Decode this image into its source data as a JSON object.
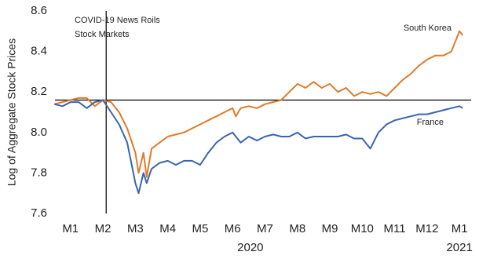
{
  "chart_data": {
    "type": "line",
    "y_label": "Log of Aggregate Stock Prices",
    "annotations": [
      "COVID-19 News Roils",
      "Stock Markets"
    ],
    "year_labels": [
      "2020",
      "2021"
    ],
    "x": [
      0.5,
      0.75,
      1,
      1.25,
      1.5,
      1.75,
      2,
      2.25,
      2.5,
      2.75,
      3,
      3.1,
      3.25,
      3.35,
      3.5,
      3.75,
      4,
      4.25,
      4.5,
      4.75,
      5,
      5.25,
      5.5,
      5.75,
      6,
      6.1,
      6.25,
      6.5,
      6.75,
      7,
      7.25,
      7.5,
      7.75,
      8,
      8.25,
      8.5,
      8.75,
      9,
      9.25,
      9.5,
      9.75,
      10,
      10.25,
      10.5,
      10.75,
      11,
      11.25,
      11.5,
      11.75,
      12,
      12.25,
      12.5,
      12.75,
      13,
      13.1
    ],
    "series": [
      {
        "name": "South Korea",
        "color": "#e07b2a",
        "values": [
          8.14,
          8.15,
          8.16,
          8.17,
          8.17,
          8.13,
          8.16,
          8.15,
          8.1,
          8.02,
          7.9,
          7.8,
          7.9,
          7.78,
          7.92,
          7.95,
          7.98,
          7.99,
          8.0,
          8.02,
          8.04,
          8.06,
          8.08,
          8.1,
          8.12,
          8.08,
          8.12,
          8.13,
          8.12,
          8.14,
          8.15,
          8.16,
          8.2,
          8.24,
          8.22,
          8.25,
          8.22,
          8.24,
          8.2,
          8.22,
          8.18,
          8.2,
          8.19,
          8.2,
          8.18,
          8.22,
          8.26,
          8.29,
          8.33,
          8.36,
          8.38,
          8.38,
          8.4,
          8.5,
          8.48
        ]
      },
      {
        "name": "France",
        "color": "#3a64b0",
        "values": [
          8.14,
          8.13,
          8.15,
          8.15,
          8.12,
          8.15,
          8.16,
          8.1,
          8.04,
          7.95,
          7.75,
          7.7,
          7.8,
          7.75,
          7.82,
          7.85,
          7.86,
          7.84,
          7.86,
          7.86,
          7.84,
          7.9,
          7.95,
          7.98,
          8.0,
          7.98,
          7.95,
          7.98,
          7.96,
          7.98,
          7.99,
          7.98,
          7.98,
          8.0,
          7.97,
          7.98,
          7.98,
          7.98,
          7.98,
          7.99,
          7.97,
          7.97,
          7.92,
          8.0,
          8.04,
          8.06,
          8.07,
          8.08,
          8.09,
          8.09,
          8.1,
          8.11,
          8.12,
          8.13,
          8.12
        ]
      }
    ],
    "xlim": [
      0.52,
      13.36
    ],
    "xticks": [
      {
        "value": 1,
        "label": "M1"
      },
      {
        "value": 2,
        "label": "M2"
      },
      {
        "value": 3,
        "label": "M3"
      },
      {
        "value": 4,
        "label": "M4"
      },
      {
        "value": 5,
        "label": "M5"
      },
      {
        "value": 6,
        "label": "M6"
      },
      {
        "value": 7,
        "label": "M7"
      },
      {
        "value": 8,
        "label": "M8"
      },
      {
        "value": 9,
        "label": "M9"
      },
      {
        "value": 10,
        "label": "M10"
      },
      {
        "value": 11,
        "label": "M11"
      },
      {
        "value": 12,
        "label": "M12"
      },
      {
        "value": 13,
        "label": "M1"
      }
    ],
    "ylim": [
      7.6,
      8.6
    ],
    "yticks": [
      7.6,
      7.8,
      {
        "value": 8,
        "label": "8.0"
      },
      8.2,
      8.4,
      8.6
    ],
    "vline": 2.1,
    "hline": 8.16,
    "grid": false
  }
}
